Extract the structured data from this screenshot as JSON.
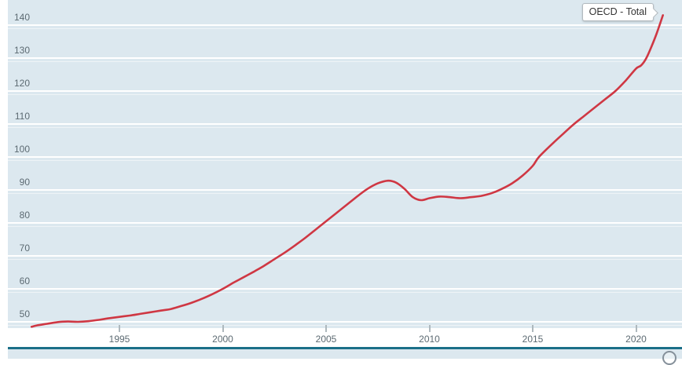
{
  "tooltip": {
    "label": "OECD - Total"
  },
  "colors": {
    "line": "#cf3743",
    "plot_bg": "#dce8ef",
    "gridline": "#ffffff",
    "axis_text": "#5c6a72",
    "divider": "#1b6f88",
    "tick": "#aeb8bd",
    "tooltip_border": "#b3babf",
    "footer_icon": "#85909a"
  },
  "chart_data": {
    "type": "line",
    "title": "",
    "xlabel": "",
    "ylabel": "",
    "grid": "horizontal white gridlines every 10 units on light blue background",
    "legend_position": "tooltip attached to line end, top right",
    "x_ticks": [
      1995,
      2000,
      2005,
      2010,
      2015,
      2020
    ],
    "y_ticks": [
      50,
      60,
      70,
      80,
      90,
      100,
      110,
      120,
      130,
      140
    ],
    "x_range": [
      1989.6,
      2022.2
    ],
    "y_range": [
      48,
      147.5
    ],
    "series": [
      {
        "name": "OECD - Total",
        "color": "#cf3743",
        "points": [
          [
            1990.75,
            48.5
          ],
          [
            1991,
            48.9
          ],
          [
            1991.5,
            49.4
          ],
          [
            1992,
            49.9
          ],
          [
            1992.5,
            50.1
          ],
          [
            1993,
            50.0
          ],
          [
            1993.5,
            50.2
          ],
          [
            1994,
            50.6
          ],
          [
            1994.5,
            51.1
          ],
          [
            1995,
            51.5
          ],
          [
            1995.5,
            51.9
          ],
          [
            1996,
            52.4
          ],
          [
            1996.5,
            52.9
          ],
          [
            1997,
            53.4
          ],
          [
            1997.5,
            53.9
          ],
          [
            1998,
            54.8
          ],
          [
            1998.5,
            55.8
          ],
          [
            1999,
            57.0
          ],
          [
            1999.5,
            58.4
          ],
          [
            2000,
            60.0
          ],
          [
            2000.5,
            61.8
          ],
          [
            2001,
            63.5
          ],
          [
            2001.5,
            65.2
          ],
          [
            2002,
            67.0
          ],
          [
            2002.5,
            69.0
          ],
          [
            2003,
            71.0
          ],
          [
            2003.5,
            73.2
          ],
          [
            2004,
            75.5
          ],
          [
            2004.5,
            78.0
          ],
          [
            2005,
            80.5
          ],
          [
            2005.5,
            83.0
          ],
          [
            2006,
            85.5
          ],
          [
            2006.5,
            88.0
          ],
          [
            2007,
            90.3
          ],
          [
            2007.5,
            92.0
          ],
          [
            2008,
            92.8
          ],
          [
            2008.4,
            92.2
          ],
          [
            2008.8,
            90.3
          ],
          [
            2009.2,
            87.8
          ],
          [
            2009.6,
            86.9
          ],
          [
            2010,
            87.5
          ],
          [
            2010.5,
            88.0
          ],
          [
            2011,
            87.8
          ],
          [
            2011.5,
            87.5
          ],
          [
            2012,
            87.8
          ],
          [
            2012.5,
            88.2
          ],
          [
            2013,
            89.0
          ],
          [
            2013.5,
            90.3
          ],
          [
            2014,
            92.0
          ],
          [
            2014.5,
            94.3
          ],
          [
            2015,
            97.3
          ],
          [
            2015.3,
            100.0
          ],
          [
            2016,
            104.3
          ],
          [
            2016.5,
            107.2
          ],
          [
            2017,
            110.0
          ],
          [
            2017.5,
            112.5
          ],
          [
            2018,
            115.0
          ],
          [
            2018.5,
            117.5
          ],
          [
            2019,
            120.0
          ],
          [
            2019.5,
            123.2
          ],
          [
            2020,
            126.8
          ],
          [
            2020.25,
            127.8
          ],
          [
            2020.5,
            130.0
          ],
          [
            2020.75,
            133.5
          ],
          [
            2021,
            137.5
          ],
          [
            2021.3,
            143.0
          ]
        ]
      }
    ]
  }
}
